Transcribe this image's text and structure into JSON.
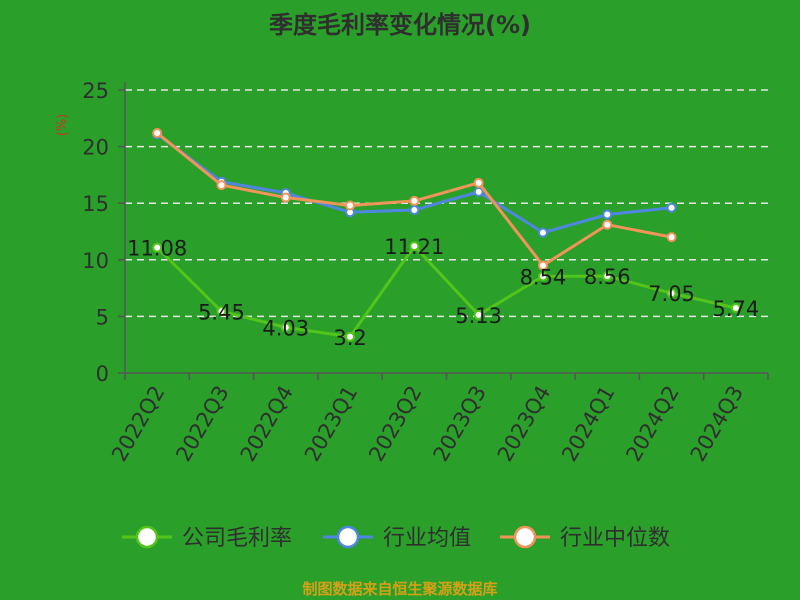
{
  "chart_data": {
    "type": "line",
    "title": "季度毛利率变化情况(%)",
    "ylabel": "(%)",
    "xlabel": "",
    "ylim": [
      0,
      25
    ],
    "yticks": [
      "0",
      "5",
      "10",
      "15",
      "20",
      "25"
    ],
    "yticks_values": [
      0,
      5,
      10,
      15,
      20,
      25
    ],
    "grid": true,
    "legend_position": "bottom",
    "categories": [
      "2022Q2",
      "2022Q3",
      "2022Q4",
      "2023Q1",
      "2023Q2",
      "2023Q3",
      "2023Q4",
      "2024Q1",
      "2024Q2",
      "2024Q3"
    ],
    "series": [
      {
        "name": "公司毛利率",
        "color": "#52c41a",
        "values": [
          11.08,
          5.45,
          4.03,
          3.2,
          11.21,
          5.13,
          8.54,
          8.56,
          7.05,
          5.74
        ],
        "labels": [
          "11.08",
          "5.45",
          "4.03",
          "3.2",
          "11.21",
          "5.13",
          "8.54",
          "8.56",
          "7.05",
          "5.74"
        ]
      },
      {
        "name": "行业均值",
        "color": "#4f86e0",
        "values": [
          21.1,
          16.9,
          15.9,
          14.2,
          14.4,
          16.0,
          12.4,
          14.0,
          14.6,
          null
        ]
      },
      {
        "name": "行业中位数",
        "color": "#f0945a",
        "values": [
          21.2,
          16.6,
          15.5,
          14.8,
          15.2,
          16.8,
          9.5,
          13.1,
          12.0,
          null
        ]
      }
    ]
  },
  "footer": {
    "source": "制图数据来自恒生聚源数据库"
  }
}
